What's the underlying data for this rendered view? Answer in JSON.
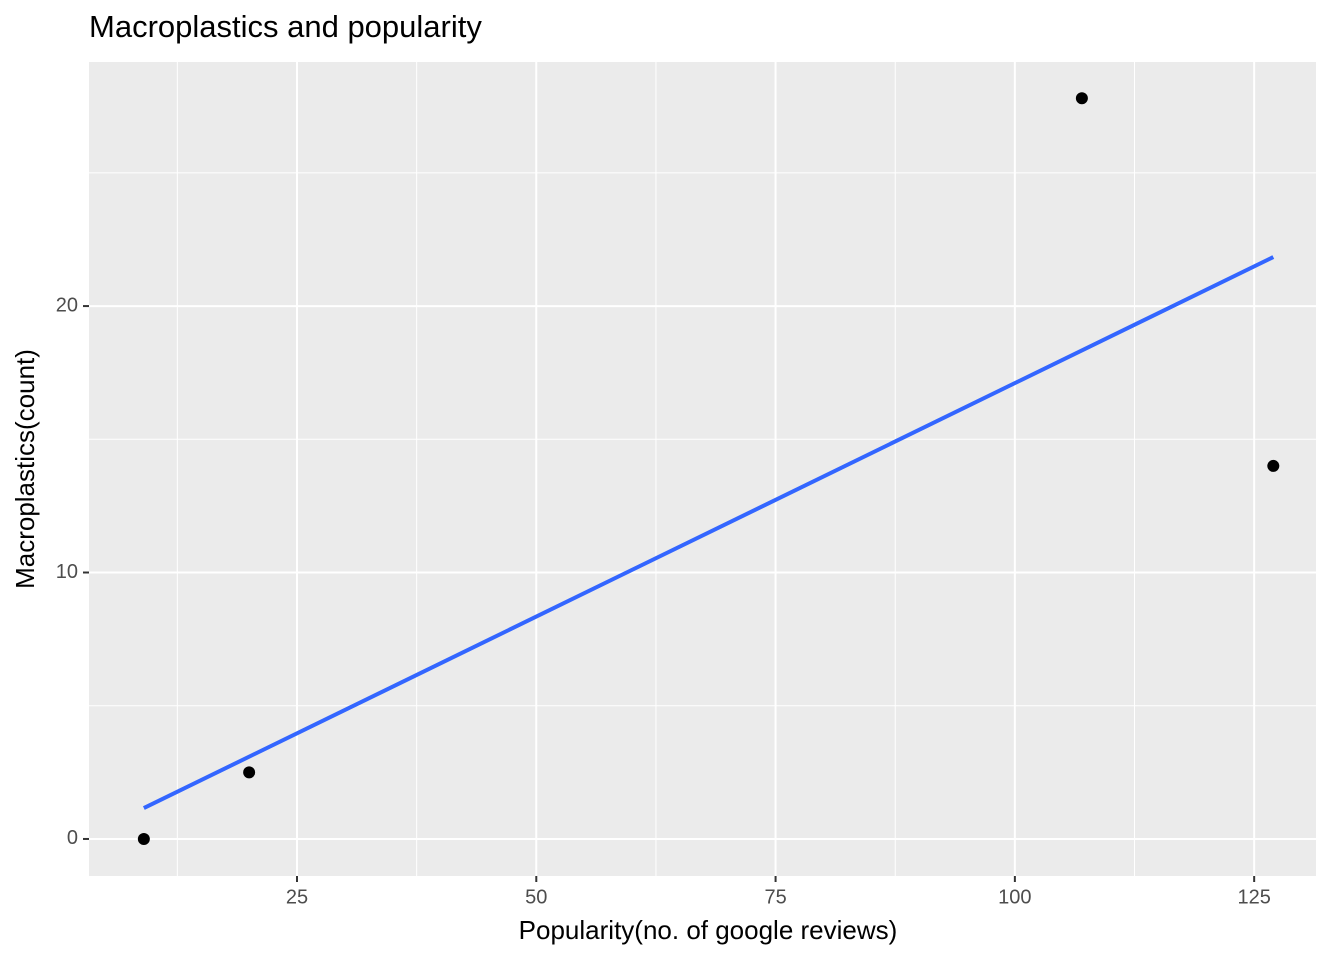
{
  "chart_data": {
    "type": "scatter",
    "title": "Macroplastics and popularity",
    "x_label": "Popularity(no. of google reviews)",
    "y_label": "Macroplastics(count)",
    "x": [
      9,
      20,
      107,
      127
    ],
    "values": [
      0,
      2.5,
      27.8,
      14
    ],
    "color": "#000000",
    "trend": {
      "x": [
        9,
        127
      ],
      "values": [
        1.16,
        21.84
      ],
      "color": "#3366ff"
    },
    "xlim": [
      3.27,
      131.46
    ],
    "ylim": [
      -1.39,
      29.16
    ],
    "xticks": [
      25,
      50,
      75,
      100,
      125
    ],
    "yticks": [
      0,
      10,
      20
    ],
    "xminor": [
      12.5,
      37.5,
      62.5,
      87.5,
      112.5
    ],
    "yminor": [
      5,
      15,
      25
    ],
    "grid": true
  }
}
